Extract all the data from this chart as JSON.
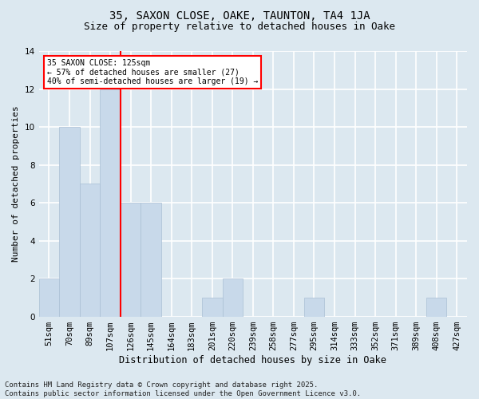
{
  "title1": "35, SAXON CLOSE, OAKE, TAUNTON, TA4 1JA",
  "title2": "Size of property relative to detached houses in Oake",
  "xlabel": "Distribution of detached houses by size in Oake",
  "ylabel": "Number of detached properties",
  "categories": [
    "51sqm",
    "70sqm",
    "89sqm",
    "107sqm",
    "126sqm",
    "145sqm",
    "164sqm",
    "183sqm",
    "201sqm",
    "220sqm",
    "239sqm",
    "258sqm",
    "277sqm",
    "295sqm",
    "314sqm",
    "333sqm",
    "352sqm",
    "371sqm",
    "389sqm",
    "408sqm",
    "427sqm"
  ],
  "values": [
    2,
    10,
    7,
    12,
    6,
    6,
    0,
    0,
    1,
    2,
    0,
    0,
    0,
    1,
    0,
    0,
    0,
    0,
    0,
    1,
    0
  ],
  "bar_color": "#c8d9ea",
  "bar_edge_color": "#aabfd4",
  "red_line_bar_index": 3,
  "annotation_text": "35 SAXON CLOSE: 125sqm\n← 57% of detached houses are smaller (27)\n40% of semi-detached houses are larger (19) →",
  "annotation_box_color": "white",
  "annotation_box_edge_color": "red",
  "ylim": [
    0,
    14
  ],
  "yticks": [
    0,
    2,
    4,
    6,
    8,
    10,
    12,
    14
  ],
  "footer_text": "Contains HM Land Registry data © Crown copyright and database right 2025.\nContains public sector information licensed under the Open Government Licence v3.0.",
  "background_color": "#dce8f0",
  "grid_color": "white",
  "title1_fontsize": 10,
  "title2_fontsize": 9,
  "xlabel_fontsize": 8.5,
  "ylabel_fontsize": 8,
  "tick_fontsize": 7.5,
  "footer_fontsize": 6.5
}
